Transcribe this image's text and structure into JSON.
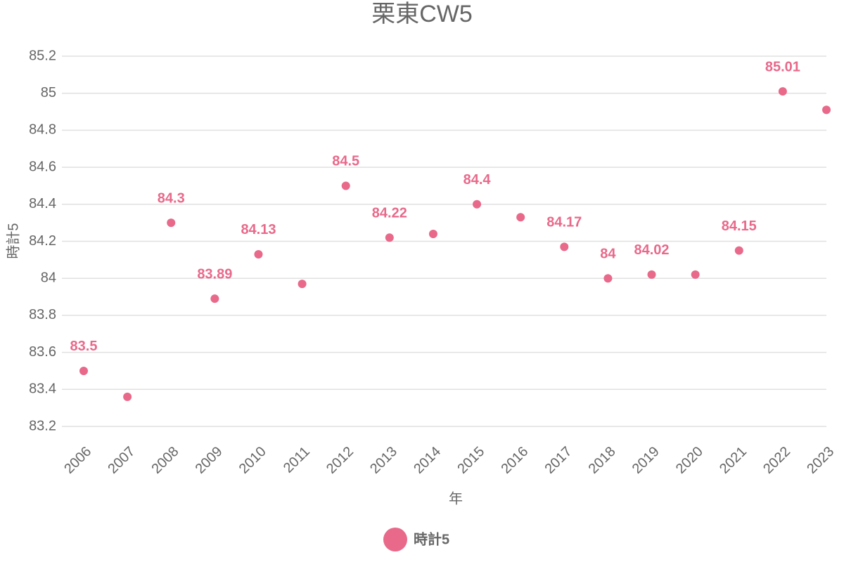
{
  "chart_data": {
    "type": "line",
    "title": "栗東CW5",
    "x_label": "年",
    "y_label": "時計5",
    "categories": [
      "2006",
      "2007",
      "2008",
      "2009",
      "2010",
      "2011",
      "2012",
      "2013",
      "2014",
      "2015",
      "2016",
      "2017",
      "2018",
      "2019",
      "2020",
      "2021",
      "2022",
      "2023"
    ],
    "series": [
      {
        "name": "時計5",
        "color": "#e8698a",
        "values": [
          83.5,
          83.36,
          84.3,
          83.89,
          84.13,
          83.97,
          84.5,
          84.22,
          84.24,
          84.4,
          84.33,
          84.17,
          84,
          84.02,
          84.02,
          84.15,
          85.01,
          84.91
        ],
        "value_labels": [
          "83.5",
          null,
          "84.3",
          "83.89",
          "84.13",
          null,
          "84.5",
          "84.22",
          null,
          "84.4",
          null,
          "84.17",
          "84",
          "84.02",
          null,
          "84.15",
          "85.01",
          null
        ]
      }
    ],
    "ylim": [
      83.2,
      85.2
    ],
    "yticks": [
      83.2,
      83.4,
      83.6,
      83.8,
      84,
      84.2,
      84.4,
      84.6,
      84.8,
      85,
      85.2
    ],
    "grid": true,
    "legend": "bottom"
  }
}
